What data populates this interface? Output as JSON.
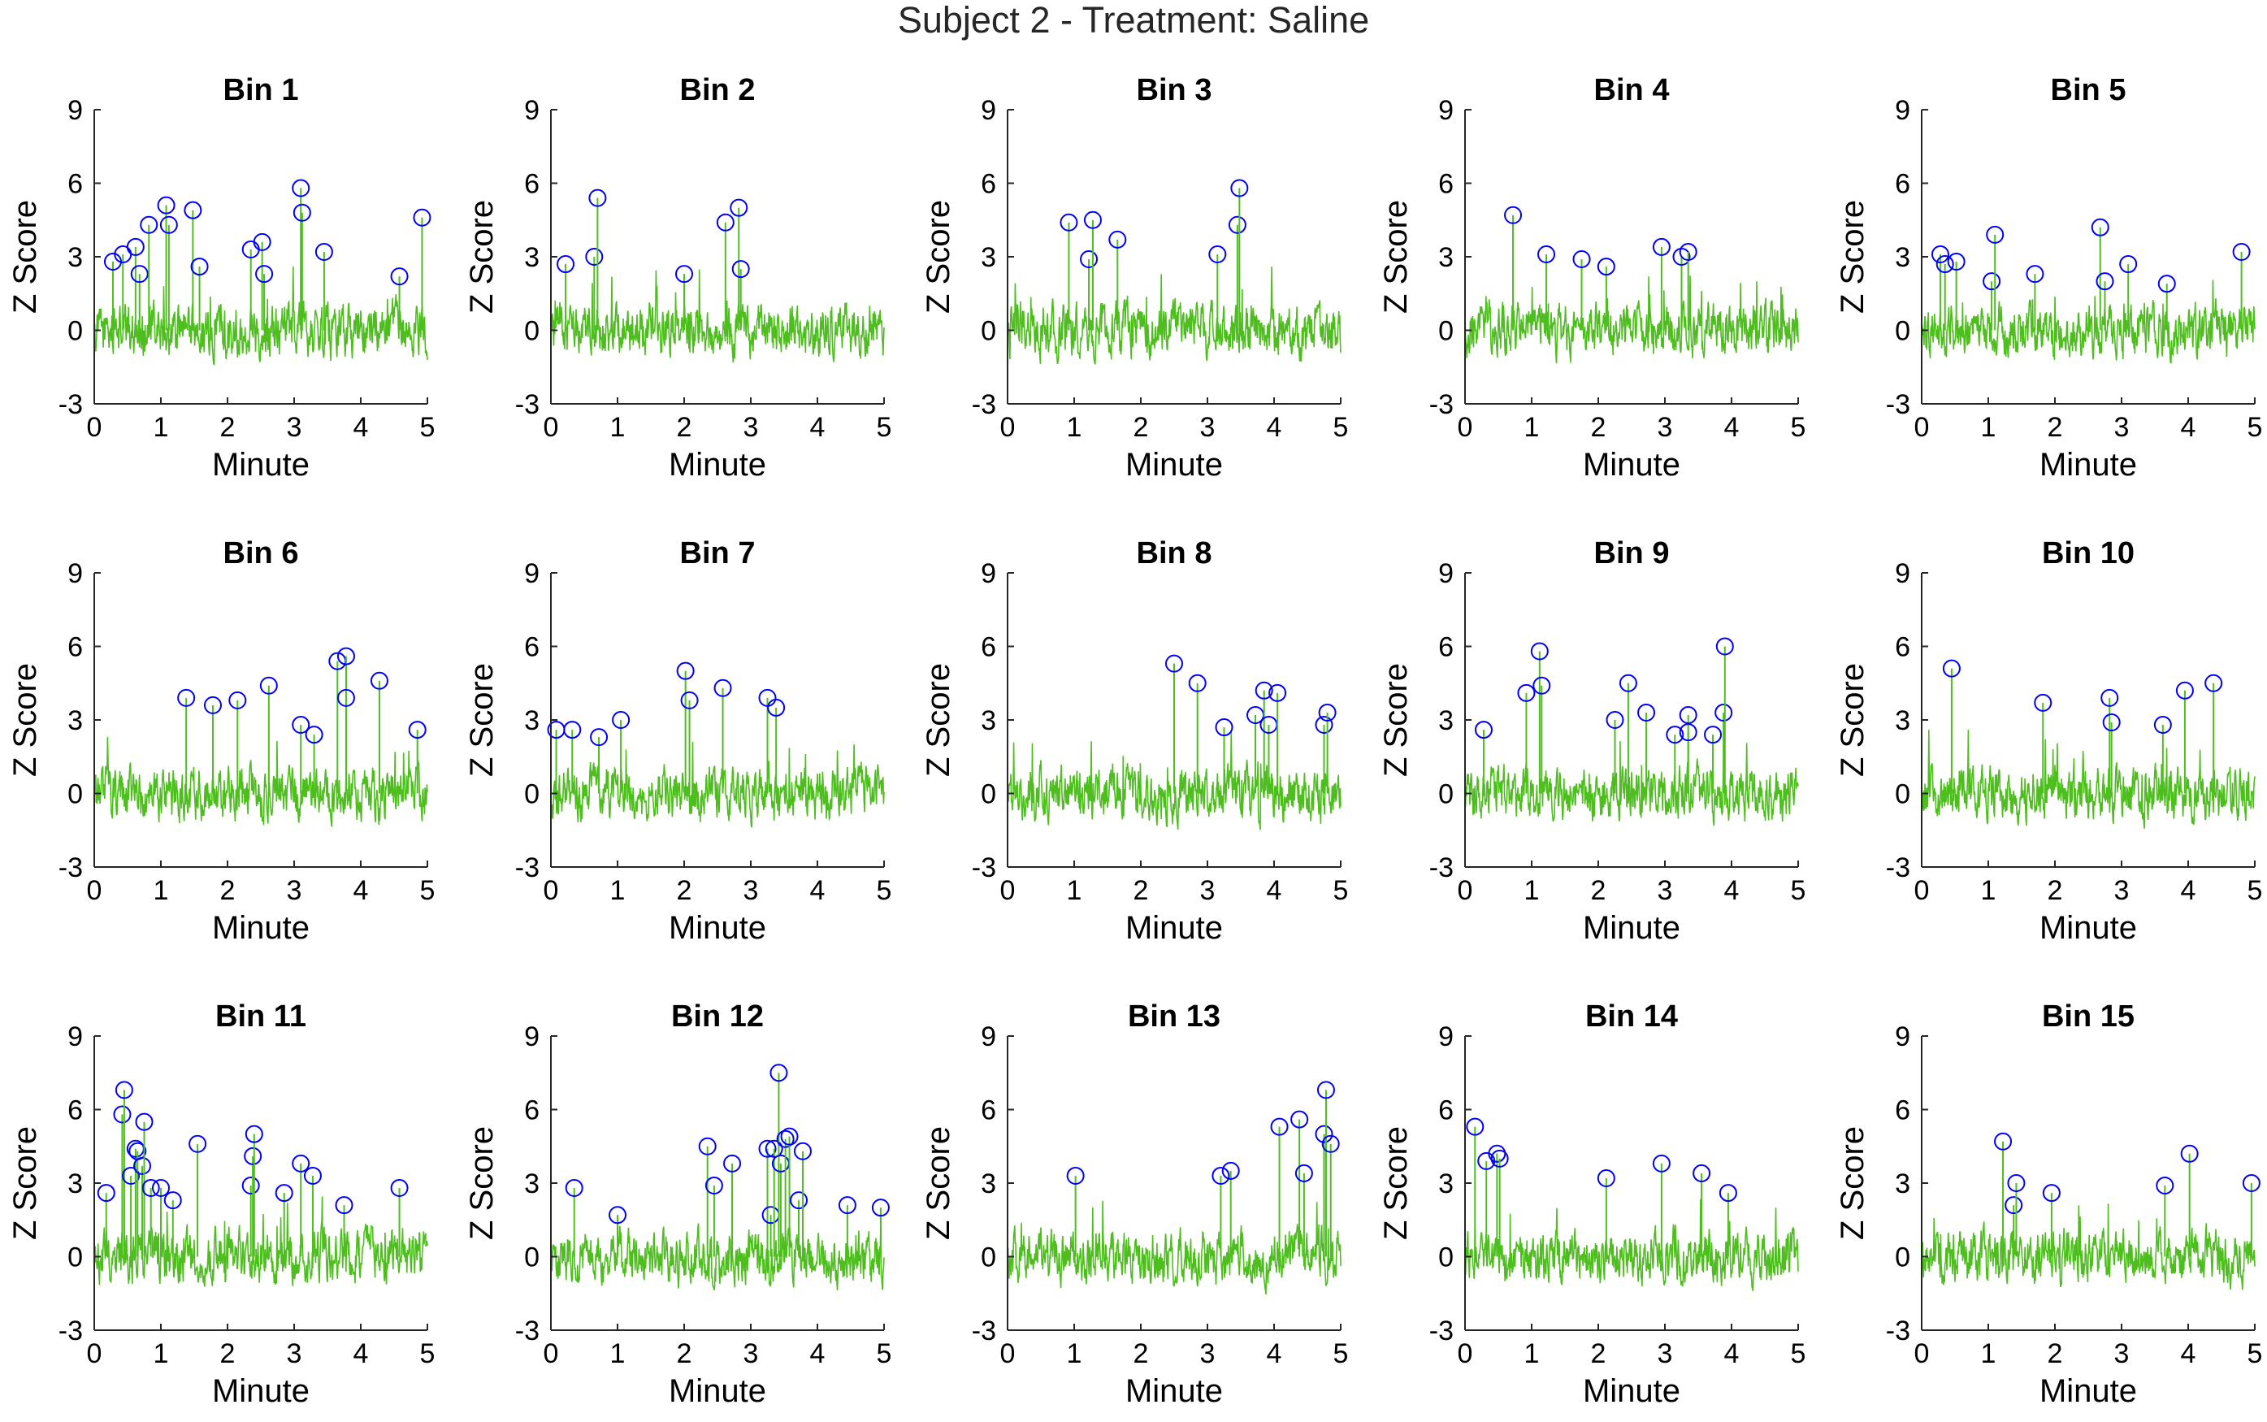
{
  "figure": {
    "title": "Subject 2 - Treatment: Saline"
  },
  "colors": {
    "signal": "#4dbe1e",
    "peak_marker": "#0000ff",
    "axis": "#262626"
  },
  "chart_data": [
    {
      "type": "line",
      "title": "Bin 1",
      "xlabel": "Minute",
      "ylabel": "Z Score",
      "xlim": [
        0,
        5
      ],
      "ylim": [
        -3,
        9
      ],
      "xticks": [
        0,
        1,
        2,
        3,
        4,
        5
      ],
      "yticks": [
        -3,
        0,
        3,
        6,
        9
      ],
      "grid": false,
      "series": [
        {
          "markers": "circles at detected peaks"
        }
      ],
      "peaks": [
        [
          0.28,
          2.8
        ],
        [
          0.43,
          3.1
        ],
        [
          0.62,
          3.4
        ],
        [
          0.68,
          2.3
        ],
        [
          0.82,
          4.3
        ],
        [
          1.08,
          5.1
        ],
        [
          1.12,
          4.3
        ],
        [
          1.48,
          4.9
        ],
        [
          1.58,
          2.6
        ],
        [
          2.35,
          3.3
        ],
        [
          2.52,
          3.6
        ],
        [
          2.55,
          2.3
        ],
        [
          3.1,
          5.8
        ],
        [
          3.12,
          4.8
        ],
        [
          3.45,
          3.2
        ],
        [
          4.58,
          2.2
        ],
        [
          4.92,
          4.6
        ]
      ]
    },
    {
      "type": "line",
      "title": "Bin 2",
      "xlabel": "Minute",
      "ylabel": "Z Score",
      "xlim": [
        0,
        5
      ],
      "ylim": [
        -3,
        9
      ],
      "xticks": [
        0,
        1,
        2,
        3,
        4,
        5
      ],
      "yticks": [
        -3,
        0,
        3,
        6,
        9
      ],
      "grid": false,
      "peaks": [
        [
          0.22,
          2.7
        ],
        [
          0.65,
          3.0
        ],
        [
          0.7,
          5.4
        ],
        [
          2.0,
          2.3
        ],
        [
          2.62,
          4.4
        ],
        [
          2.82,
          5.0
        ],
        [
          2.85,
          2.5
        ]
      ]
    },
    {
      "type": "line",
      "title": "Bin 3",
      "xlabel": "Minute",
      "ylabel": "Z Score",
      "xlim": [
        0,
        5
      ],
      "ylim": [
        -3,
        9
      ],
      "xticks": [
        0,
        1,
        2,
        3,
        4,
        5
      ],
      "yticks": [
        -3,
        0,
        3,
        6,
        9
      ],
      "grid": false,
      "peaks": [
        [
          0.92,
          4.4
        ],
        [
          1.22,
          2.9
        ],
        [
          1.28,
          4.5
        ],
        [
          1.65,
          3.7
        ],
        [
          3.15,
          3.1
        ],
        [
          3.45,
          4.3
        ],
        [
          3.48,
          5.8
        ]
      ]
    },
    {
      "type": "line",
      "title": "Bin 4",
      "xlabel": "Minute",
      "ylabel": "Z Score",
      "xlim": [
        0,
        5
      ],
      "ylim": [
        -3,
        9
      ],
      "xticks": [
        0,
        1,
        2,
        3,
        4,
        5
      ],
      "yticks": [
        -3,
        0,
        3,
        6,
        9
      ],
      "grid": false,
      "peaks": [
        [
          0.72,
          4.7
        ],
        [
          1.22,
          3.1
        ],
        [
          1.75,
          2.9
        ],
        [
          2.12,
          2.6
        ],
        [
          2.95,
          3.4
        ],
        [
          3.25,
          3.0
        ],
        [
          3.35,
          3.2
        ]
      ]
    },
    {
      "type": "line",
      "title": "Bin 5",
      "xlabel": "Minute",
      "ylabel": "Z Score",
      "xlim": [
        0,
        5
      ],
      "ylim": [
        -3,
        9
      ],
      "xticks": [
        0,
        1,
        2,
        3,
        4,
        5
      ],
      "yticks": [
        -3,
        0,
        3,
        6,
        9
      ],
      "grid": false,
      "peaks": [
        [
          0.28,
          3.1
        ],
        [
          0.35,
          2.7
        ],
        [
          0.52,
          2.8
        ],
        [
          1.05,
          2.0
        ],
        [
          1.1,
          3.9
        ],
        [
          1.7,
          2.3
        ],
        [
          2.68,
          4.2
        ],
        [
          2.75,
          2.0
        ],
        [
          3.1,
          2.7
        ],
        [
          3.68,
          1.9
        ],
        [
          4.8,
          3.2
        ]
      ]
    },
    {
      "type": "line",
      "title": "Bin 6",
      "xlabel": "Minute",
      "ylabel": "Z Score",
      "xlim": [
        0,
        5
      ],
      "ylim": [
        -3,
        9
      ],
      "xticks": [
        0,
        1,
        2,
        3,
        4,
        5
      ],
      "yticks": [
        -3,
        0,
        3,
        6,
        9
      ],
      "grid": false,
      "peaks": [
        [
          1.38,
          3.9
        ],
        [
          1.78,
          3.6
        ],
        [
          2.15,
          3.8
        ],
        [
          2.62,
          4.4
        ],
        [
          3.1,
          2.8
        ],
        [
          3.3,
          2.4
        ],
        [
          3.65,
          5.4
        ],
        [
          3.78,
          5.6
        ],
        [
          3.78,
          3.9
        ],
        [
          4.28,
          4.6
        ],
        [
          4.85,
          2.6
        ]
      ]
    },
    {
      "type": "line",
      "title": "Bin 7",
      "xlabel": "Minute",
      "ylabel": "Z Score",
      "xlim": [
        0,
        5
      ],
      "ylim": [
        -3,
        9
      ],
      "xticks": [
        0,
        1,
        2,
        3,
        4,
        5
      ],
      "yticks": [
        -3,
        0,
        3,
        6,
        9
      ],
      "grid": false,
      "peaks": [
        [
          0.08,
          2.6
        ],
        [
          0.32,
          2.6
        ],
        [
          0.72,
          2.3
        ],
        [
          1.05,
          3.0
        ],
        [
          2.02,
          5.0
        ],
        [
          2.08,
          3.8
        ],
        [
          2.58,
          4.3
        ],
        [
          3.25,
          3.9
        ],
        [
          3.38,
          3.5
        ]
      ]
    },
    {
      "type": "line",
      "title": "Bin 8",
      "xlabel": "Minute",
      "ylabel": "Z Score",
      "xlim": [
        0,
        5
      ],
      "ylim": [
        -3,
        9
      ],
      "xticks": [
        0,
        1,
        2,
        3,
        4,
        5
      ],
      "yticks": [
        -3,
        0,
        3,
        6,
        9
      ],
      "grid": false,
      "peaks": [
        [
          2.5,
          5.3
        ],
        [
          2.85,
          4.5
        ],
        [
          3.25,
          2.7
        ],
        [
          3.72,
          3.2
        ],
        [
          3.85,
          4.2
        ],
        [
          3.92,
          2.8
        ],
        [
          4.05,
          4.1
        ],
        [
          4.75,
          2.8
        ],
        [
          4.8,
          3.3
        ]
      ]
    },
    {
      "type": "line",
      "title": "Bin 9",
      "xlabel": "Minute",
      "ylabel": "Z Score",
      "xlim": [
        0,
        5
      ],
      "ylim": [
        -3,
        9
      ],
      "xticks": [
        0,
        1,
        2,
        3,
        4,
        5
      ],
      "yticks": [
        -3,
        0,
        3,
        6,
        9
      ],
      "grid": false,
      "peaks": [
        [
          0.28,
          2.6
        ],
        [
          0.92,
          4.1
        ],
        [
          1.12,
          5.8
        ],
        [
          1.15,
          4.4
        ],
        [
          2.25,
          3.0
        ],
        [
          2.45,
          4.5
        ],
        [
          2.72,
          3.3
        ],
        [
          3.15,
          2.4
        ],
        [
          3.35,
          3.2
        ],
        [
          3.35,
          2.5
        ],
        [
          3.72,
          2.4
        ],
        [
          3.88,
          3.3
        ],
        [
          3.9,
          6.0
        ]
      ]
    },
    {
      "type": "line",
      "title": "Bin 10",
      "xlabel": "Minute",
      "ylabel": "Z Score",
      "xlim": [
        0,
        5
      ],
      "ylim": [
        -3,
        9
      ],
      "xticks": [
        0,
        1,
        2,
        3,
        4,
        5
      ],
      "yticks": [
        -3,
        0,
        3,
        6,
        9
      ],
      "grid": false,
      "peaks": [
        [
          0.45,
          5.1
        ],
        [
          1.82,
          3.7
        ],
        [
          2.82,
          3.9
        ],
        [
          2.85,
          2.9
        ],
        [
          3.62,
          2.8
        ],
        [
          3.95,
          4.2
        ],
        [
          4.38,
          4.5
        ]
      ]
    },
    {
      "type": "line",
      "title": "Bin 11",
      "xlabel": "Minute",
      "ylabel": "Z Score",
      "xlim": [
        0,
        5
      ],
      "ylim": [
        -3,
        9
      ],
      "xticks": [
        0,
        1,
        2,
        3,
        4,
        5
      ],
      "yticks": [
        -3,
        0,
        3,
        6,
        9
      ],
      "grid": false,
      "peaks": [
        [
          0.18,
          2.6
        ],
        [
          0.42,
          5.8
        ],
        [
          0.45,
          6.8
        ],
        [
          0.55,
          3.3
        ],
        [
          0.62,
          4.4
        ],
        [
          0.65,
          4.3
        ],
        [
          0.72,
          3.7
        ],
        [
          0.75,
          5.5
        ],
        [
          0.85,
          2.8
        ],
        [
          1.0,
          2.8
        ],
        [
          1.18,
          2.3
        ],
        [
          1.55,
          4.6
        ],
        [
          2.35,
          2.9
        ],
        [
          2.38,
          4.1
        ],
        [
          2.4,
          5.0
        ],
        [
          2.85,
          2.6
        ],
        [
          3.1,
          3.8
        ],
        [
          3.28,
          3.3
        ],
        [
          3.75,
          2.1
        ],
        [
          4.58,
          2.8
        ]
      ]
    },
    {
      "type": "line",
      "title": "Bin 12",
      "xlabel": "Minute",
      "ylabel": "Z Score",
      "xlim": [
        0,
        5
      ],
      "ylim": [
        -3,
        9
      ],
      "xticks": [
        0,
        1,
        2,
        3,
        4,
        5
      ],
      "yticks": [
        -3,
        0,
        3,
        6,
        9
      ],
      "grid": false,
      "peaks": [
        [
          0.35,
          2.8
        ],
        [
          1.0,
          1.7
        ],
        [
          2.35,
          4.5
        ],
        [
          2.45,
          2.9
        ],
        [
          2.72,
          3.8
        ],
        [
          3.25,
          4.4
        ],
        [
          3.3,
          1.7
        ],
        [
          3.35,
          4.4
        ],
        [
          3.42,
          7.5
        ],
        [
          3.45,
          3.8
        ],
        [
          3.52,
          4.8
        ],
        [
          3.58,
          4.9
        ],
        [
          3.72,
          2.3
        ],
        [
          3.78,
          4.3
        ],
        [
          4.45,
          2.1
        ],
        [
          4.95,
          2.0
        ]
      ]
    },
    {
      "type": "line",
      "title": "Bin 13",
      "xlabel": "Minute",
      "ylabel": "Z Score",
      "xlim": [
        0,
        5
      ],
      "ylim": [
        -3,
        9
      ],
      "xticks": [
        0,
        1,
        2,
        3,
        4,
        5
      ],
      "yticks": [
        -3,
        0,
        3,
        6,
        9
      ],
      "grid": false,
      "peaks": [
        [
          1.02,
          3.3
        ],
        [
          3.2,
          3.3
        ],
        [
          3.35,
          3.5
        ],
        [
          4.08,
          5.3
        ],
        [
          4.38,
          5.6
        ],
        [
          4.45,
          3.4
        ],
        [
          4.75,
          5.0
        ],
        [
          4.78,
          6.8
        ],
        [
          4.85,
          4.6
        ]
      ]
    },
    {
      "type": "line",
      "title": "Bin 14",
      "xlabel": "Minute",
      "ylabel": "Z Score",
      "xlim": [
        0,
        5
      ],
      "ylim": [
        -3,
        9
      ],
      "xticks": [
        0,
        1,
        2,
        3,
        4,
        5
      ],
      "yticks": [
        -3,
        0,
        3,
        6,
        9
      ],
      "grid": false,
      "peaks": [
        [
          0.15,
          5.3
        ],
        [
          0.32,
          3.9
        ],
        [
          0.48,
          4.2
        ],
        [
          0.52,
          4.0
        ],
        [
          2.12,
          3.2
        ],
        [
          2.95,
          3.8
        ],
        [
          3.55,
          3.4
        ],
        [
          3.95,
          2.6
        ]
      ]
    },
    {
      "type": "line",
      "title": "Bin 15",
      "xlabel": "Minute",
      "ylabel": "Z Score",
      "xlim": [
        0,
        5
      ],
      "ylim": [
        -3,
        9
      ],
      "xticks": [
        0,
        1,
        2,
        3,
        4,
        5
      ],
      "yticks": [
        -3,
        0,
        3,
        6,
        9
      ],
      "grid": false,
      "peaks": [
        [
          1.22,
          4.7
        ],
        [
          1.38,
          2.1
        ],
        [
          1.42,
          3.0
        ],
        [
          1.95,
          2.6
        ],
        [
          3.65,
          2.9
        ],
        [
          4.02,
          4.2
        ],
        [
          4.95,
          3.0
        ]
      ]
    }
  ]
}
